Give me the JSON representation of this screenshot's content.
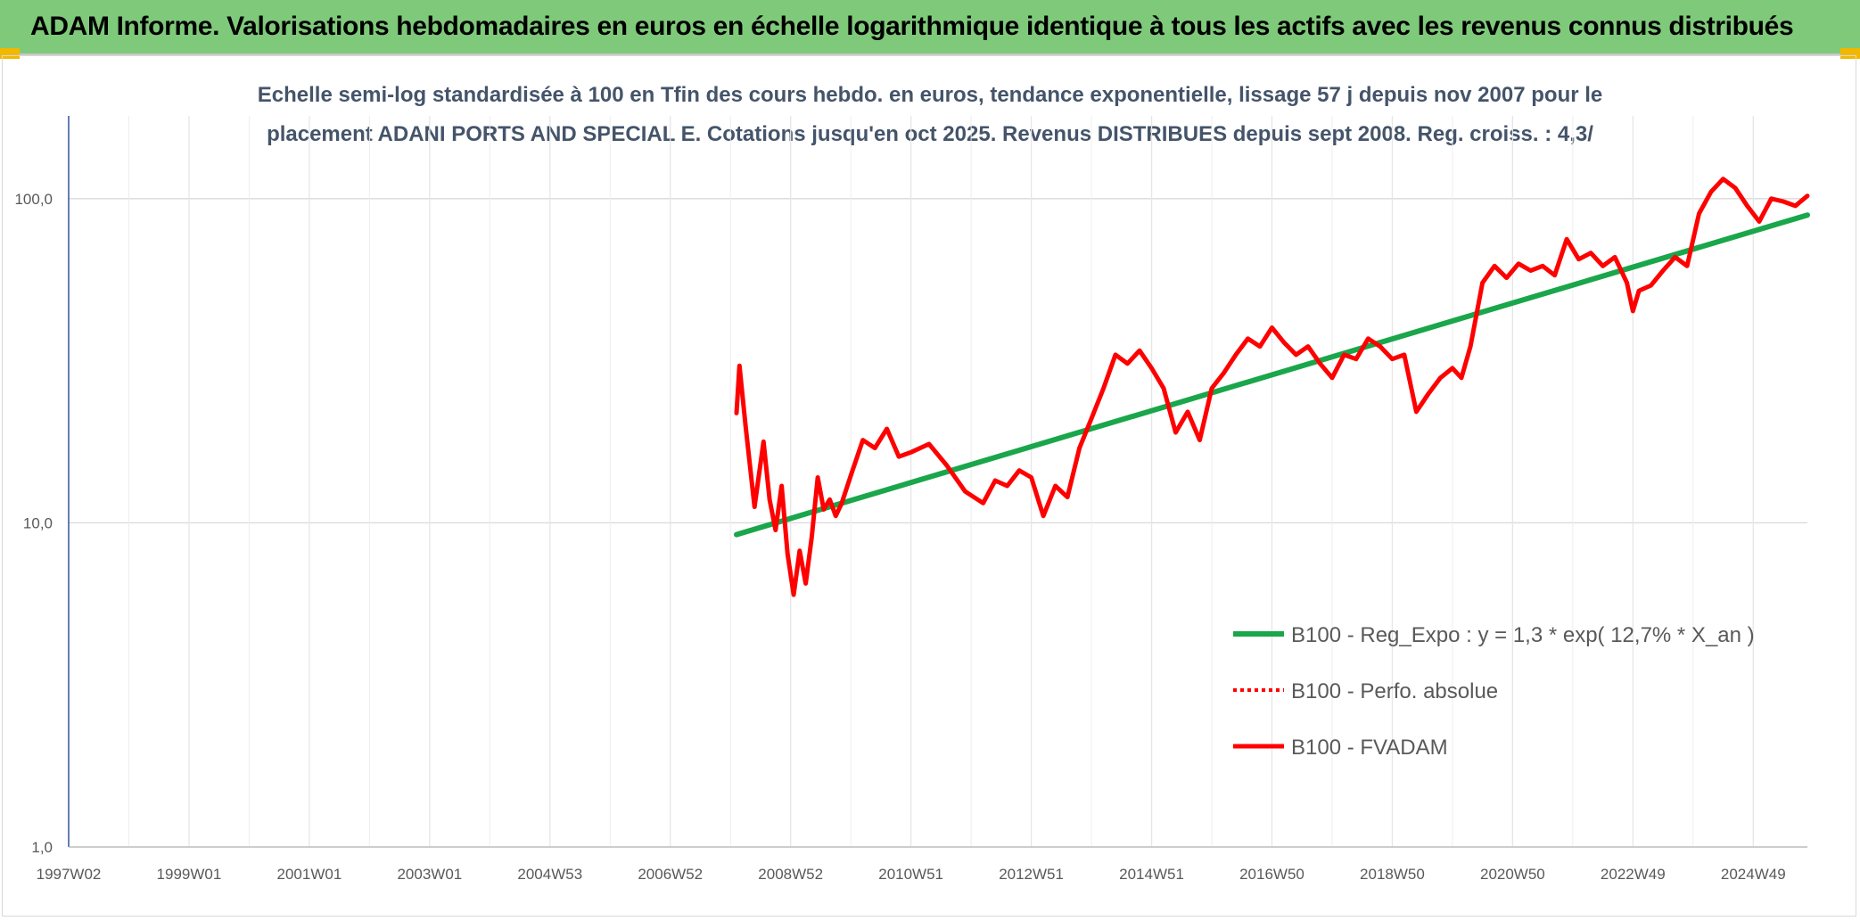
{
  "header": {
    "title": "ADAM Informe. Valorisations hebdomadaires en euros en échelle logarithmique identique à tous les actifs avec les revenus connus distribués"
  },
  "colors": {
    "banner": "#7fc97a",
    "accent": "#f2b800",
    "trend": "#1aa64a",
    "series": "#ff0000"
  },
  "chart_data": {
    "type": "line",
    "title": "Echelle semi-log standardisée à 100 en Tfin des cours hebdo. en euros, tendance exponentielle, lissage 57 j depuis nov 2007 pour le",
    "subtitle": "placement ADANI PORTS AND SPECIAL E. Cotations jusqu'en oct 2025. Revenus DISTRIBUES depuis sept 2008. Reg. croiss. : 4,3/",
    "y_scale": "log",
    "ylim": [
      1,
      180
    ],
    "y_ticks": [
      {
        "value": 1,
        "label": "1,0"
      },
      {
        "value": 10,
        "label": "10,0"
      },
      {
        "value": 100,
        "label": "100,0"
      }
    ],
    "xlim": [
      1997.0,
      2025.9
    ],
    "x_ticks": [
      {
        "value": 1997.0,
        "label": "1997W02"
      },
      {
        "value": 1999.0,
        "label": "1999W01"
      },
      {
        "value": 2001.0,
        "label": "2001W01"
      },
      {
        "value": 2003.0,
        "label": "2003W01"
      },
      {
        "value": 2005.0,
        "label": "2004W53"
      },
      {
        "value": 2007.0,
        "label": "2006W52"
      },
      {
        "value": 2009.0,
        "label": "2008W52"
      },
      {
        "value": 2011.0,
        "label": "2010W51"
      },
      {
        "value": 2013.0,
        "label": "2012W51"
      },
      {
        "value": 2015.0,
        "label": "2014W51"
      },
      {
        "value": 2017.0,
        "label": "2016W50"
      },
      {
        "value": 2019.0,
        "label": "2018W50"
      },
      {
        "value": 2021.0,
        "label": "2020W50"
      },
      {
        "value": 2023.0,
        "label": "2022W49"
      },
      {
        "value": 2025.0,
        "label": "2024W49"
      }
    ],
    "grid": true,
    "legend_position": "bottom-right",
    "series": [
      {
        "name": "B100 - Reg_Expo : y = 1,3 * exp( 12,7% *  X_an )",
        "style": "solid-green",
        "x": [
          2008.1,
          2025.9
        ],
        "y": [
          9.2,
          89
        ]
      },
      {
        "name": "B100 - Perfo. absolue",
        "style": "dotted-red",
        "x": [],
        "y": []
      },
      {
        "name": "B100 - FVADAM",
        "style": "solid-red",
        "x": [
          2008.1,
          2008.15,
          2008.25,
          2008.4,
          2008.55,
          2008.65,
          2008.75,
          2008.85,
          2008.95,
          2009.05,
          2009.15,
          2009.25,
          2009.35,
          2009.45,
          2009.55,
          2009.65,
          2009.75,
          2009.85,
          2010.0,
          2010.2,
          2010.4,
          2010.6,
          2010.8,
          2011.0,
          2011.3,
          2011.6,
          2011.9,
          2012.2,
          2012.4,
          2012.6,
          2012.8,
          2013.0,
          2013.2,
          2013.4,
          2013.6,
          2013.8,
          2014.0,
          2014.2,
          2014.4,
          2014.6,
          2014.8,
          2015.0,
          2015.2,
          2015.4,
          2015.6,
          2015.8,
          2016.0,
          2016.2,
          2016.4,
          2016.6,
          2016.8,
          2017.0,
          2017.2,
          2017.4,
          2017.6,
          2017.8,
          2018.0,
          2018.2,
          2018.4,
          2018.6,
          2018.8,
          2019.0,
          2019.2,
          2019.4,
          2019.6,
          2019.8,
          2020.0,
          2020.15,
          2020.3,
          2020.5,
          2020.7,
          2020.9,
          2021.1,
          2021.3,
          2021.5,
          2021.7,
          2021.9,
          2022.1,
          2022.3,
          2022.5,
          2022.7,
          2022.9,
          2023.0,
          2023.1,
          2023.3,
          2023.5,
          2023.7,
          2023.9,
          2024.1,
          2024.3,
          2024.5,
          2024.7,
          2024.9,
          2025.1,
          2025.3,
          2025.5,
          2025.7,
          2025.9
        ],
        "y": [
          21.8,
          30.5,
          20.0,
          11.2,
          17.8,
          11.8,
          9.5,
          13.0,
          8.0,
          6.0,
          8.2,
          6.5,
          9.0,
          13.8,
          11.0,
          11.8,
          10.5,
          11.5,
          14.0,
          18.0,
          17.0,
          19.5,
          16.0,
          16.5,
          17.5,
          15.0,
          12.5,
          11.5,
          13.5,
          13.0,
          14.5,
          13.8,
          10.5,
          13.0,
          12.0,
          17.0,
          21.0,
          26.0,
          33.0,
          31.0,
          34.0,
          30.0,
          26.0,
          19.0,
          22.0,
          18.0,
          26.0,
          29.0,
          33.0,
          37.0,
          35.0,
          40.0,
          36.0,
          33.0,
          35.0,
          31.0,
          28.0,
          33.0,
          32.0,
          37.0,
          35.0,
          32.0,
          33.0,
          22.0,
          25.0,
          28.0,
          30.0,
          28.0,
          35.0,
          55.0,
          62.0,
          57.0,
          63.0,
          60.0,
          62.0,
          58.0,
          75.0,
          65.0,
          68.0,
          62.0,
          66.0,
          55.0,
          45.0,
          52.0,
          54.0,
          60.0,
          66.0,
          62.0,
          90.0,
          105.0,
          115.0,
          108.0,
          95.0,
          85.0,
          100.0,
          98.0,
          95.0,
          102.0
        ]
      }
    ]
  }
}
